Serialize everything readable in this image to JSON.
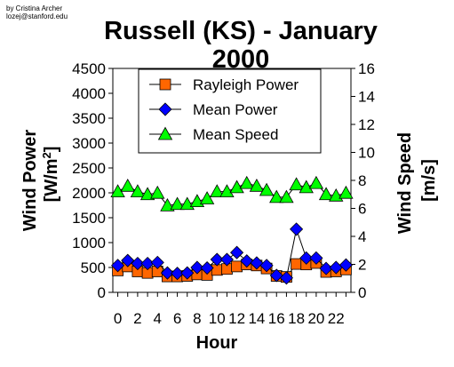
{
  "credit": {
    "line1": "by Cristina Archer",
    "line2": "lozej@stanford.edu"
  },
  "chart_data": {
    "type": "line",
    "title_line1": "Russell (KS) - January",
    "title_line2": "2000",
    "xlabel": "Hour",
    "ylabel_left": "Wind Power",
    "ylabel_left_unit": "[W/m",
    "ylabel_left_unit_sup": "2",
    "ylabel_left_unit_end": "]",
    "ylabel_right": "Wind Speed",
    "ylabel_right_unit": "[m/s]",
    "x": [
      0,
      1,
      2,
      3,
      4,
      5,
      6,
      7,
      8,
      9,
      10,
      11,
      12,
      13,
      14,
      15,
      16,
      17,
      18,
      19,
      20,
      21,
      22,
      23
    ],
    "x_tick_labels": [
      "0",
      "2",
      "4",
      "6",
      "8",
      "10",
      "12",
      "14",
      "16",
      "18",
      "20",
      "22"
    ],
    "x_tick_values": [
      0,
      2,
      4,
      6,
      8,
      10,
      12,
      14,
      16,
      18,
      20,
      22
    ],
    "xlim": [
      -0.5,
      23.5
    ],
    "y_left_lim": [
      0,
      4500
    ],
    "y_left_ticks": [
      "0",
      "500",
      "1000",
      "1500",
      "2000",
      "2500",
      "3000",
      "3500",
      "4000",
      "4500"
    ],
    "y_right_lim": [
      0,
      16
    ],
    "y_right_ticks": [
      "0",
      "2",
      "4",
      "6",
      "8",
      "10",
      "12",
      "14",
      "16"
    ],
    "legend_position": "top-center",
    "grid": false,
    "series": [
      {
        "name": "Rayleigh Power",
        "axis": "left",
        "marker": "square",
        "color": "#ff6600",
        "values": [
          440,
          520,
          420,
          390,
          420,
          320,
          320,
          330,
          360,
          350,
          450,
          470,
          520,
          560,
          540,
          480,
          330,
          310,
          570,
          560,
          590,
          410,
          420,
          460
        ]
      },
      {
        "name": "Mean Power",
        "axis": "left",
        "marker": "diamond",
        "color": "#0000ff",
        "values": [
          540,
          640,
          580,
          580,
          600,
          390,
          380,
          390,
          500,
          490,
          660,
          660,
          800,
          630,
          590,
          540,
          340,
          290,
          1270,
          690,
          690,
          480,
          500,
          550
        ]
      },
      {
        "name": "Mean Speed",
        "axis": "right",
        "marker": "triangle",
        "color": "#00ff00",
        "values": [
          7.2,
          7.6,
          7.2,
          7.0,
          7.1,
          6.2,
          6.3,
          6.3,
          6.5,
          6.7,
          7.2,
          7.2,
          7.5,
          7.8,
          7.6,
          7.3,
          6.8,
          6.8,
          7.7,
          7.5,
          7.8,
          7.0,
          6.9,
          7.1
        ]
      }
    ]
  }
}
